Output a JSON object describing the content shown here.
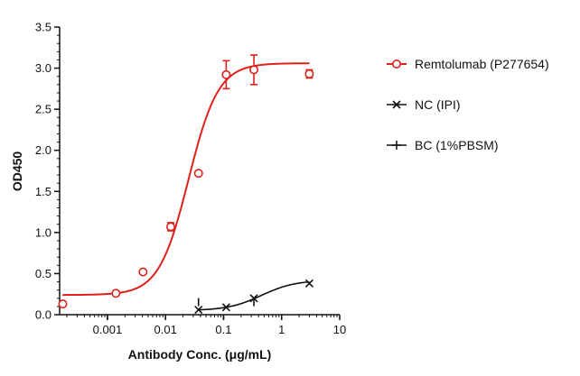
{
  "chart_data": {
    "type": "scatter",
    "xlabel": "Antibody Conc. (μg/mL)",
    "ylabel": "OD450",
    "x_scale": "log",
    "xlim": [
      0.00015,
      10
    ],
    "ylim": [
      0,
      3.5
    ],
    "x_ticks": [
      0.001,
      0.01,
      0.1,
      1,
      10
    ],
    "x_tick_labels": [
      "0.001",
      "0.01",
      "0.1",
      "1",
      "10"
    ],
    "y_ticks": [
      0,
      0.5,
      1.0,
      1.5,
      2.0,
      2.5,
      3.0,
      3.5
    ],
    "y_tick_labels": [
      "0.0",
      "0.5",
      "1.0",
      "1.5",
      "2.0",
      "2.5",
      "3.0",
      "3.5"
    ],
    "grid": false,
    "legend_position": "right",
    "series": [
      {
        "name": "Remtolumab (P277654)",
        "color": "#e0201b",
        "marker": "open-circle",
        "points": [
          {
            "x": 0.00017,
            "y": 0.13
          },
          {
            "x": 0.0014,
            "y": 0.26
          },
          {
            "x": 0.0041,
            "y": 0.52
          },
          {
            "x": 0.0123,
            "y": 1.07,
            "err": 0.05
          },
          {
            "x": 0.037,
            "y": 1.72
          },
          {
            "x": 0.111,
            "y": 2.92,
            "err": 0.17
          },
          {
            "x": 0.333,
            "y": 2.98,
            "err": 0.18
          },
          {
            "x": 3.0,
            "y": 2.93,
            "err": 0.05
          }
        ],
        "fit": {
          "bottom": 0.24,
          "top": 3.06,
          "ec50": 0.025,
          "hill": 1.7
        }
      },
      {
        "name": "NC (IPI)",
        "color": "#111111",
        "marker": "x",
        "points": [
          {
            "x": 0.037,
            "y": 0.06
          },
          {
            "x": 0.111,
            "y": 0.09
          },
          {
            "x": 0.333,
            "y": 0.2
          },
          {
            "x": 3.0,
            "y": 0.38
          }
        ],
        "fit": {
          "bottom": 0.05,
          "top": 0.42,
          "ec50": 0.45,
          "hill": 1.5
        }
      },
      {
        "name": "BC (1%PBSM)",
        "color": "#111111",
        "marker": "plus",
        "points": [
          {
            "x": 0.037,
            "y": 0.06
          },
          {
            "x": 0.333,
            "y": 0.06
          }
        ]
      }
    ]
  }
}
